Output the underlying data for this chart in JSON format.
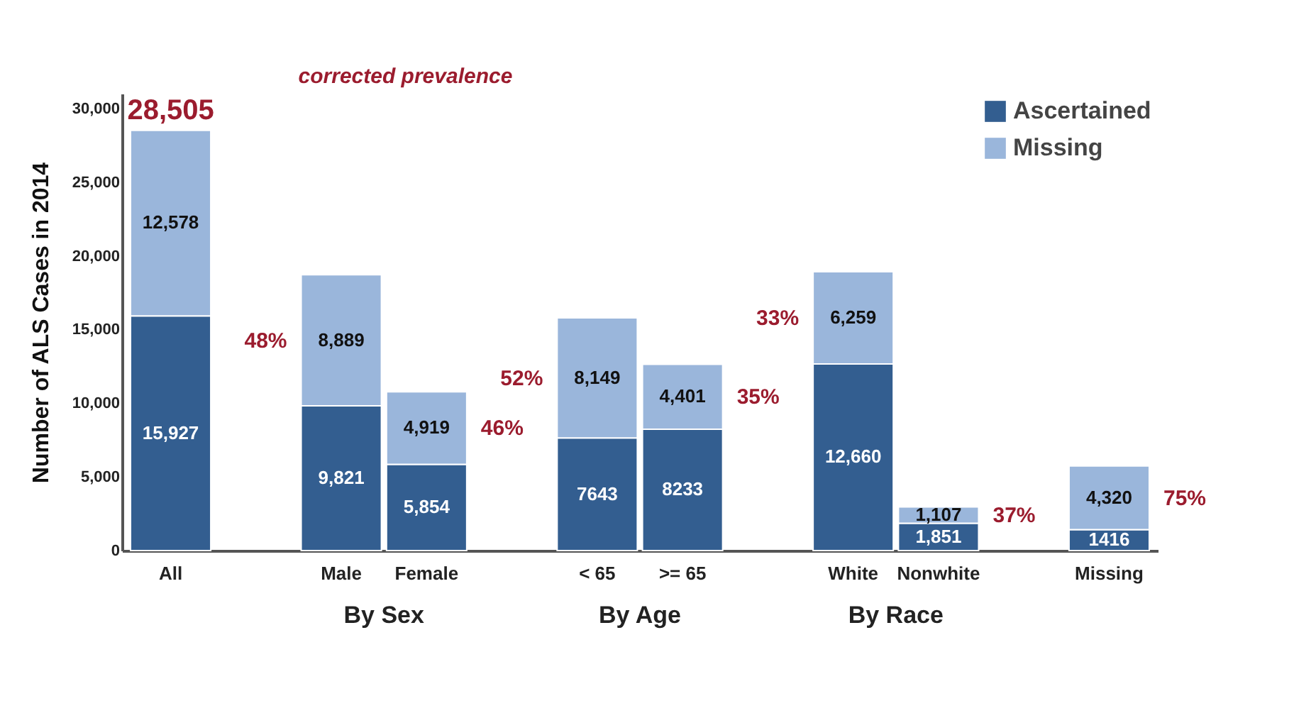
{
  "chart_data": {
    "type": "bar",
    "stacked": true,
    "ylabel": "Number of ALS Cases in 2014",
    "categories": [
      "All",
      null,
      "Male",
      "Female",
      null,
      "< 65",
      ">= 65",
      null,
      "White",
      "Nonwhite",
      null,
      "Missing"
    ],
    "series": [
      {
        "name": "Ascertained",
        "color": "#335e90",
        "values": [
          15927,
          null,
          9821,
          5854,
          null,
          7643,
          8233,
          null,
          12660,
          1851,
          null,
          1416
        ],
        "value_labels": [
          "15,927",
          null,
          "9,821",
          "5,854",
          null,
          "7643",
          "8233",
          null,
          "12,660",
          "1,851",
          null,
          "1416"
        ]
      },
      {
        "name": "Missing",
        "color": "#9ab6db",
        "values": [
          12578,
          null,
          8889,
          4919,
          null,
          8149,
          4401,
          null,
          6259,
          1107,
          null,
          4320
        ],
        "value_labels": [
          "12,578",
          null,
          "8,889",
          "4,919",
          null,
          "8,149",
          "4,401",
          null,
          "6,259",
          "1,107",
          null,
          "4,320"
        ]
      }
    ],
    "totals": [
      "28,505",
      null,
      null,
      null,
      null,
      null,
      null,
      null,
      null,
      null,
      null,
      null
    ],
    "ylim": [
      0,
      31000
    ],
    "yticks": [
      0,
      {
        "value": 5000,
        "label": "5,000"
      },
      {
        "value": 10000,
        "label": "10,000"
      },
      {
        "value": 15000,
        "label": "15,000"
      },
      {
        "value": 20000,
        "label": "20,000"
      },
      {
        "value": 25000,
        "label": "25,000"
      },
      {
        "value": 30000,
        "label": "30,000"
      }
    ],
    "grid": false,
    "legend": "top right",
    "annotations": [
      "corrected prevalence",
      "48%",
      "46%",
      "52%",
      "35%",
      "33%",
      "37%",
      "75%",
      "By Sex",
      "By Age",
      "By Race"
    ]
  }
}
